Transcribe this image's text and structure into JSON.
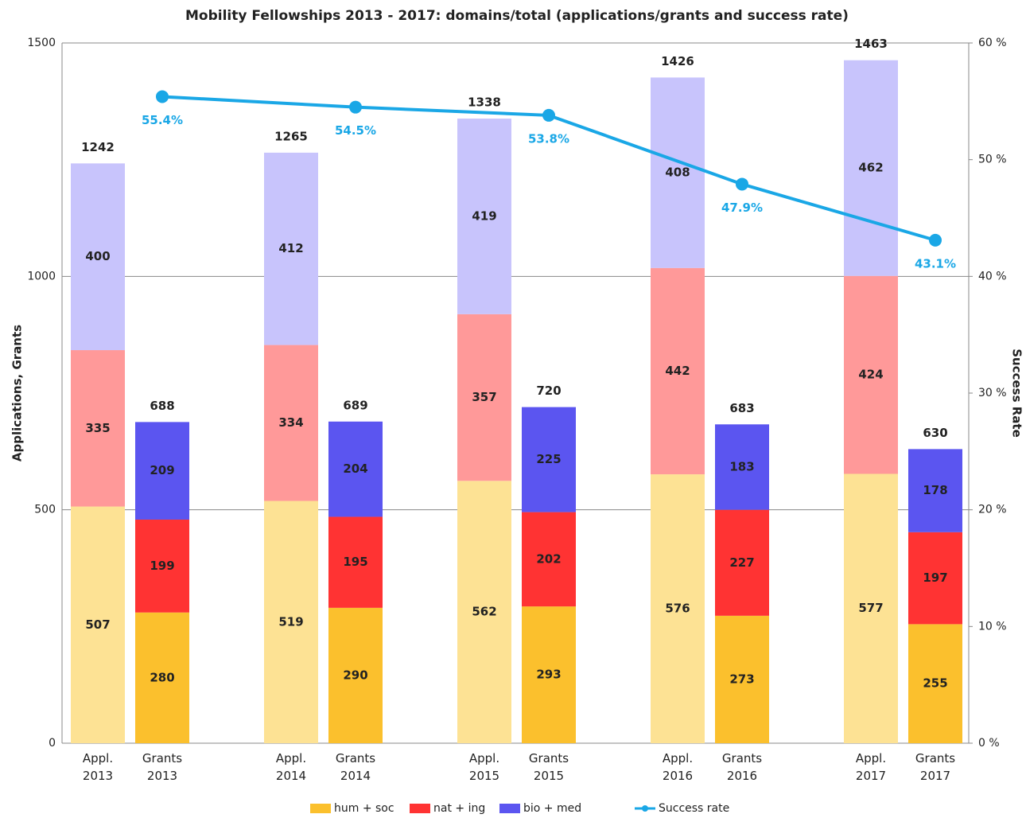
{
  "chart_data": {
    "type": "bar",
    "stacked": true,
    "title": "Mobility Fellowships 2013 - 2017: domains/total (applications/grants and success rate)",
    "ylabel": "Applications, Grants",
    "y2label": "Success Rate",
    "categories": [
      "Appl. 2013",
      "Grants 2013",
      "Appl. 2014",
      "Grants 2014",
      "Appl. 2015",
      "Grants 2015",
      "Appl. 2016",
      "Grants 2016",
      "Appl. 2017",
      "Grants 2017"
    ],
    "series": [
      {
        "name": "hum + soc",
        "color": "#fbc02d",
        "colors": [
          "#fde294",
          "#fbc02d",
          "#fde294",
          "#fbc02d",
          "#fde294",
          "#fbc02d",
          "#fde294",
          "#fbc02d",
          "#fde294",
          "#fbc02d"
        ],
        "values": [
          507,
          280,
          519,
          290,
          562,
          293,
          576,
          273,
          577,
          255
        ]
      },
      {
        "name": "nat + ing",
        "color": "#ff3333",
        "colors": [
          "#ff9999",
          "#ff3333",
          "#ff9999",
          "#ff3333",
          "#ff9999",
          "#ff3333",
          "#ff9999",
          "#ff3333",
          "#ff9999",
          "#ff3333"
        ],
        "values": [
          335,
          199,
          334,
          195,
          357,
          202,
          442,
          227,
          424,
          197
        ]
      },
      {
        "name": "bio + med",
        "color": "#5b55f0",
        "colors": [
          "#c8c4fc",
          "#5b55f0",
          "#c8c4fc",
          "#5b55f0",
          "#c8c4fc",
          "#5b55f0",
          "#c8c4fc",
          "#5b55f0",
          "#c8c4fc",
          "#5b55f0"
        ],
        "values": [
          400,
          209,
          412,
          204,
          419,
          225,
          408,
          183,
          462,
          178
        ]
      },
      {
        "name": "Success rate",
        "type": "line",
        "axis": "y2",
        "color": "#1aa7e6",
        "values": [
          null,
          55.4,
          null,
          54.5,
          null,
          53.8,
          null,
          47.9,
          null,
          43.1
        ],
        "value_labels": [
          null,
          "55.4%",
          null,
          "54.5%",
          null,
          "53.8%",
          null,
          "47.9%",
          null,
          "43.1%"
        ]
      }
    ],
    "totals": [
      1242,
      688,
      1265,
      689,
      1338,
      720,
      1426,
      683,
      1463,
      630
    ],
    "ylim": [
      0,
      1500
    ],
    "yticks": [
      0,
      500,
      1000,
      1500
    ],
    "y2lim": [
      0,
      60
    ],
    "y2ticks": [
      {
        "value": 0,
        "label": "0 %"
      },
      {
        "value": 10,
        "label": "10 %"
      },
      {
        "value": 20,
        "label": "20 %"
      },
      {
        "value": 30,
        "label": "30 %"
      },
      {
        "value": 40,
        "label": "40 %"
      },
      {
        "value": 50,
        "label": "50 %"
      },
      {
        "value": 60,
        "label": "60 %"
      }
    ],
    "grid": true,
    "legend": "bottom"
  }
}
